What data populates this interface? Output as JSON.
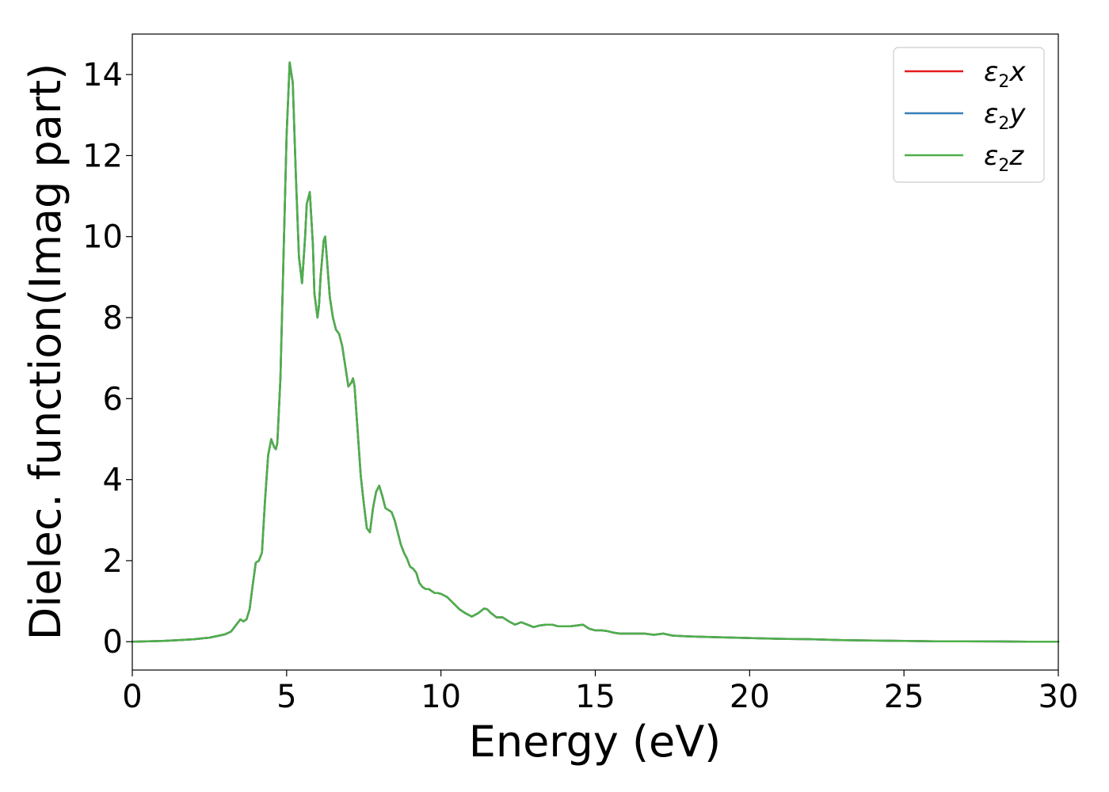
{
  "chart_data": {
    "type": "line",
    "title": "",
    "xlabel": "Energy (eV)",
    "ylabel": "Dielec. function(Imag part)",
    "xlim": [
      0,
      30
    ],
    "ylim": [
      -0.7,
      15.0
    ],
    "xticks": [
      0,
      5,
      10,
      15,
      20,
      25,
      30
    ],
    "yticks": [
      0,
      2,
      4,
      6,
      8,
      10,
      12,
      14
    ],
    "grid": false,
    "legend_position": "top-right",
    "x": [
      0,
      0.5,
      1,
      1.5,
      2,
      2.5,
      3,
      3.2,
      3.4,
      3.5,
      3.6,
      3.7,
      3.8,
      3.9,
      4.0,
      4.1,
      4.2,
      4.3,
      4.4,
      4.5,
      4.6,
      4.65,
      4.7,
      4.8,
      4.9,
      5.0,
      5.1,
      5.2,
      5.3,
      5.4,
      5.5,
      5.6,
      5.65,
      5.75,
      5.85,
      5.9,
      6.0,
      6.05,
      6.1,
      6.2,
      6.25,
      6.3,
      6.4,
      6.5,
      6.6,
      6.7,
      6.8,
      6.9,
      7.0,
      7.1,
      7.15,
      7.2,
      7.3,
      7.4,
      7.5,
      7.6,
      7.7,
      7.8,
      7.9,
      8.0,
      8.1,
      8.2,
      8.3,
      8.4,
      8.5,
      8.6,
      8.7,
      8.8,
      8.9,
      9.0,
      9.1,
      9.2,
      9.3,
      9.4,
      9.5,
      9.6,
      9.7,
      9.8,
      9.9,
      10.0,
      10.2,
      10.4,
      10.6,
      10.8,
      11.0,
      11.2,
      11.4,
      11.5,
      11.6,
      11.8,
      12.0,
      12.2,
      12.4,
      12.6,
      12.8,
      13.0,
      13.2,
      13.4,
      13.6,
      13.8,
      14.0,
      14.2,
      14.4,
      14.6,
      14.8,
      15.0,
      15.2,
      15.4,
      15.6,
      15.8,
      16.0,
      16.3,
      16.6,
      16.9,
      17.2,
      17.5,
      18.0,
      18.5,
      19.0,
      19.5,
      20.0,
      21.0,
      22.0,
      23.0,
      24.0,
      25.0,
      26.0,
      27.0,
      28.0,
      29.0,
      30.0
    ],
    "series": [
      {
        "name": "ε₂x",
        "color": "#e41a1c",
        "values": [
          0.0,
          0.01,
          0.02,
          0.04,
          0.06,
          0.1,
          0.18,
          0.25,
          0.45,
          0.55,
          0.5,
          0.55,
          0.8,
          1.4,
          1.95,
          2.0,
          2.2,
          3.5,
          4.6,
          5.0,
          4.8,
          4.75,
          4.9,
          6.5,
          9.5,
          12.5,
          14.3,
          13.8,
          11.5,
          9.5,
          8.85,
          10.0,
          10.8,
          11.1,
          9.8,
          8.6,
          8.0,
          8.3,
          9.0,
          9.9,
          10.0,
          9.5,
          8.5,
          8.0,
          7.7,
          7.6,
          7.3,
          6.8,
          6.3,
          6.4,
          6.5,
          6.3,
          5.2,
          4.1,
          3.4,
          2.8,
          2.7,
          3.3,
          3.7,
          3.85,
          3.6,
          3.3,
          3.25,
          3.2,
          3.0,
          2.7,
          2.4,
          2.2,
          2.05,
          1.85,
          1.8,
          1.7,
          1.45,
          1.35,
          1.3,
          1.3,
          1.25,
          1.2,
          1.2,
          1.18,
          1.1,
          0.95,
          0.8,
          0.7,
          0.62,
          0.7,
          0.82,
          0.8,
          0.72,
          0.6,
          0.6,
          0.5,
          0.42,
          0.48,
          0.42,
          0.36,
          0.4,
          0.42,
          0.42,
          0.38,
          0.38,
          0.38,
          0.4,
          0.42,
          0.32,
          0.28,
          0.28,
          0.26,
          0.22,
          0.2,
          0.2,
          0.2,
          0.2,
          0.17,
          0.2,
          0.15,
          0.13,
          0.12,
          0.11,
          0.1,
          0.09,
          0.07,
          0.06,
          0.04,
          0.03,
          0.02,
          0.01,
          0.01,
          0.005,
          0.0,
          0.0
        ]
      },
      {
        "name": "ε₂y",
        "color": "#377eb8",
        "values": [
          0.0,
          0.01,
          0.02,
          0.04,
          0.06,
          0.1,
          0.18,
          0.25,
          0.45,
          0.55,
          0.5,
          0.55,
          0.8,
          1.4,
          1.95,
          2.0,
          2.2,
          3.5,
          4.6,
          5.0,
          4.8,
          4.75,
          4.9,
          6.5,
          9.5,
          12.5,
          14.3,
          13.8,
          11.5,
          9.5,
          8.85,
          10.0,
          10.8,
          11.1,
          9.8,
          8.6,
          8.0,
          8.3,
          9.0,
          9.9,
          10.0,
          9.5,
          8.5,
          8.0,
          7.7,
          7.6,
          7.3,
          6.8,
          6.3,
          6.4,
          6.5,
          6.3,
          5.2,
          4.1,
          3.4,
          2.8,
          2.7,
          3.3,
          3.7,
          3.85,
          3.6,
          3.3,
          3.25,
          3.2,
          3.0,
          2.7,
          2.4,
          2.2,
          2.05,
          1.85,
          1.8,
          1.7,
          1.45,
          1.35,
          1.3,
          1.3,
          1.25,
          1.2,
          1.2,
          1.18,
          1.1,
          0.95,
          0.8,
          0.7,
          0.62,
          0.7,
          0.82,
          0.8,
          0.72,
          0.6,
          0.6,
          0.5,
          0.42,
          0.48,
          0.42,
          0.36,
          0.4,
          0.42,
          0.42,
          0.38,
          0.38,
          0.38,
          0.4,
          0.42,
          0.32,
          0.28,
          0.28,
          0.26,
          0.22,
          0.2,
          0.2,
          0.2,
          0.2,
          0.17,
          0.2,
          0.15,
          0.13,
          0.12,
          0.11,
          0.1,
          0.09,
          0.07,
          0.06,
          0.04,
          0.03,
          0.02,
          0.01,
          0.01,
          0.005,
          0.0,
          0.0
        ]
      },
      {
        "name": "ε₂z",
        "color": "#4daf4a",
        "values": [
          0.0,
          0.01,
          0.02,
          0.04,
          0.06,
          0.1,
          0.18,
          0.25,
          0.45,
          0.55,
          0.5,
          0.55,
          0.8,
          1.4,
          1.95,
          2.0,
          2.2,
          3.5,
          4.6,
          5.0,
          4.8,
          4.75,
          4.9,
          6.5,
          9.5,
          12.5,
          14.3,
          13.8,
          11.5,
          9.5,
          8.85,
          10.0,
          10.8,
          11.1,
          9.8,
          8.6,
          8.0,
          8.3,
          9.0,
          9.9,
          10.0,
          9.5,
          8.5,
          8.0,
          7.7,
          7.6,
          7.3,
          6.8,
          6.3,
          6.4,
          6.5,
          6.3,
          5.2,
          4.1,
          3.4,
          2.8,
          2.7,
          3.3,
          3.7,
          3.85,
          3.6,
          3.3,
          3.25,
          3.2,
          3.0,
          2.7,
          2.4,
          2.2,
          2.05,
          1.85,
          1.8,
          1.7,
          1.45,
          1.35,
          1.3,
          1.3,
          1.25,
          1.2,
          1.2,
          1.18,
          1.1,
          0.95,
          0.8,
          0.7,
          0.62,
          0.7,
          0.82,
          0.8,
          0.72,
          0.6,
          0.6,
          0.5,
          0.42,
          0.48,
          0.42,
          0.36,
          0.4,
          0.42,
          0.42,
          0.38,
          0.38,
          0.38,
          0.4,
          0.42,
          0.32,
          0.28,
          0.28,
          0.26,
          0.22,
          0.2,
          0.2,
          0.2,
          0.2,
          0.17,
          0.2,
          0.15,
          0.13,
          0.12,
          0.11,
          0.1,
          0.09,
          0.07,
          0.06,
          0.04,
          0.03,
          0.02,
          0.01,
          0.01,
          0.005,
          0.0,
          0.0
        ]
      }
    ]
  }
}
